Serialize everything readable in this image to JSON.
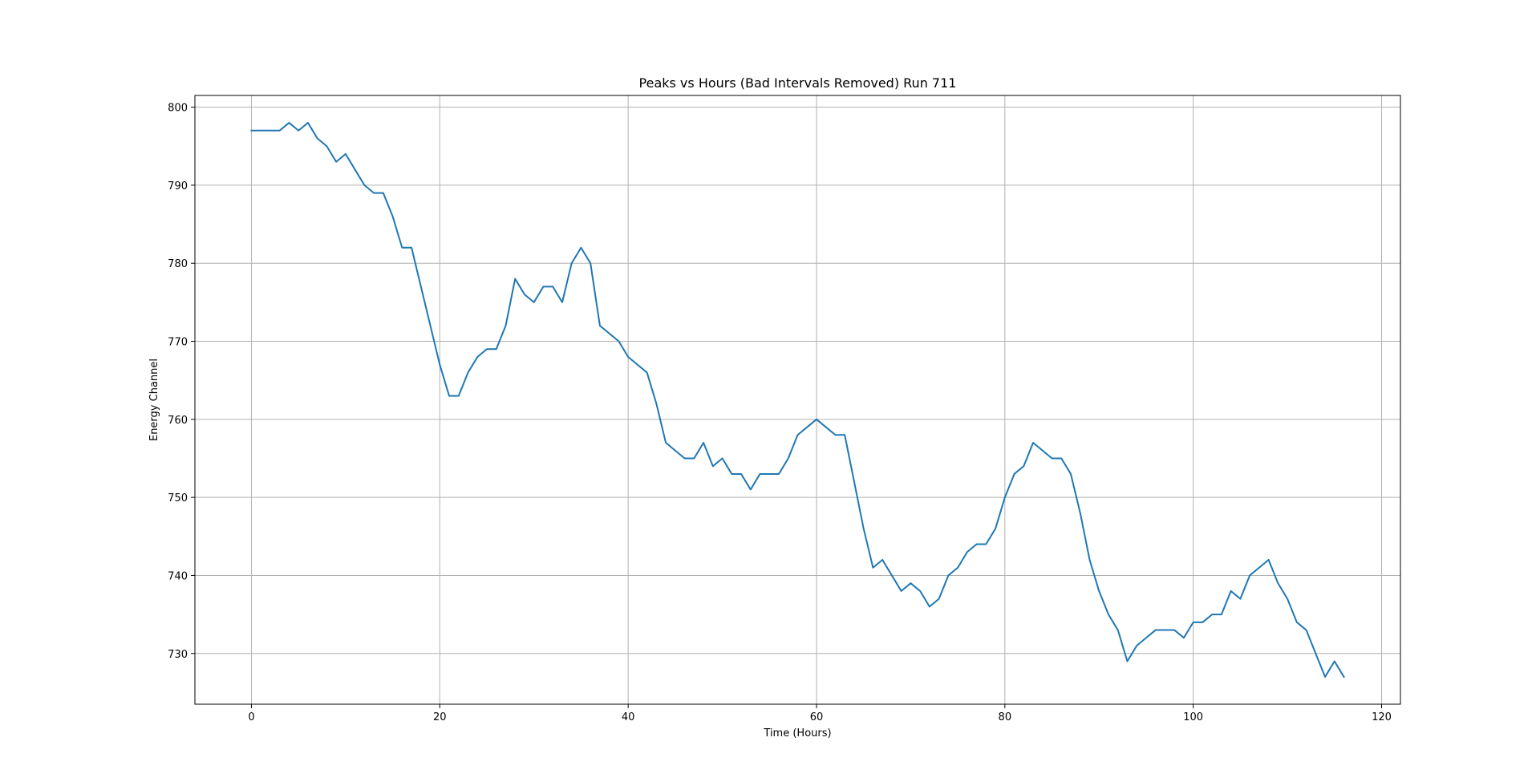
{
  "chart_data": {
    "type": "line",
    "title": "Peaks vs Hours (Bad Intervals Removed) Run 711",
    "xlabel": "Time (Hours)",
    "ylabel": "Energy Channel",
    "xlim": [
      -6,
      122
    ],
    "ylim": [
      723.5,
      801.5
    ],
    "xticks": [
      0,
      20,
      40,
      60,
      80,
      100,
      120
    ],
    "yticks": [
      730,
      740,
      750,
      760,
      770,
      780,
      790,
      800
    ],
    "grid": true,
    "series": [
      {
        "color": "#1f77b4",
        "x": [
          0,
          1,
          2,
          3,
          4,
          5,
          6,
          7,
          8,
          9,
          10,
          11,
          12,
          13,
          14,
          15,
          16,
          17,
          18,
          19,
          20,
          21,
          22,
          23,
          24,
          25,
          26,
          27,
          28,
          29,
          30,
          31,
          32,
          33,
          34,
          35,
          36,
          37,
          38,
          39,
          40,
          41,
          42,
          43,
          44,
          45,
          46,
          47,
          48,
          49,
          50,
          51,
          52,
          53,
          54,
          55,
          56,
          57,
          58,
          59,
          60,
          61,
          62,
          63,
          64,
          65,
          66,
          67,
          68,
          69,
          70,
          71,
          72,
          73,
          74,
          75,
          76,
          77,
          78,
          79,
          80,
          81,
          82,
          83,
          84,
          85,
          86,
          87,
          88,
          89,
          90,
          91,
          92,
          93,
          94,
          95,
          96,
          97,
          98,
          99,
          100,
          101,
          102,
          103,
          104,
          105,
          106,
          107,
          108,
          109,
          110,
          111,
          112,
          113,
          114,
          115,
          116
        ],
        "y": [
          797,
          797,
          797,
          797,
          798,
          797,
          798,
          796,
          795,
          793,
          794,
          792,
          790,
          789,
          789,
          786,
          782,
          782,
          777,
          772,
          767,
          763,
          763,
          766,
          768,
          769,
          769,
          772,
          778,
          776,
          775,
          777,
          777,
          775,
          780,
          782,
          780,
          772,
          771,
          770,
          768,
          767,
          766,
          762,
          757,
          756,
          755,
          755,
          757,
          754,
          755,
          753,
          753,
          751,
          753,
          753,
          753,
          755,
          758,
          759,
          760,
          759,
          758,
          758,
          752,
          746,
          741,
          742,
          740,
          738,
          739,
          738,
          736,
          737,
          740,
          741,
          743,
          744,
          744,
          746,
          750,
          753,
          754,
          757,
          756,
          755,
          755,
          753,
          748,
          742,
          738,
          735,
          733,
          729,
          731,
          732,
          733,
          733,
          733,
          732,
          734,
          734,
          735,
          735,
          738,
          737,
          740,
          741,
          742,
          739,
          737,
          734,
          733,
          730,
          727,
          729,
          727
        ]
      }
    ]
  }
}
